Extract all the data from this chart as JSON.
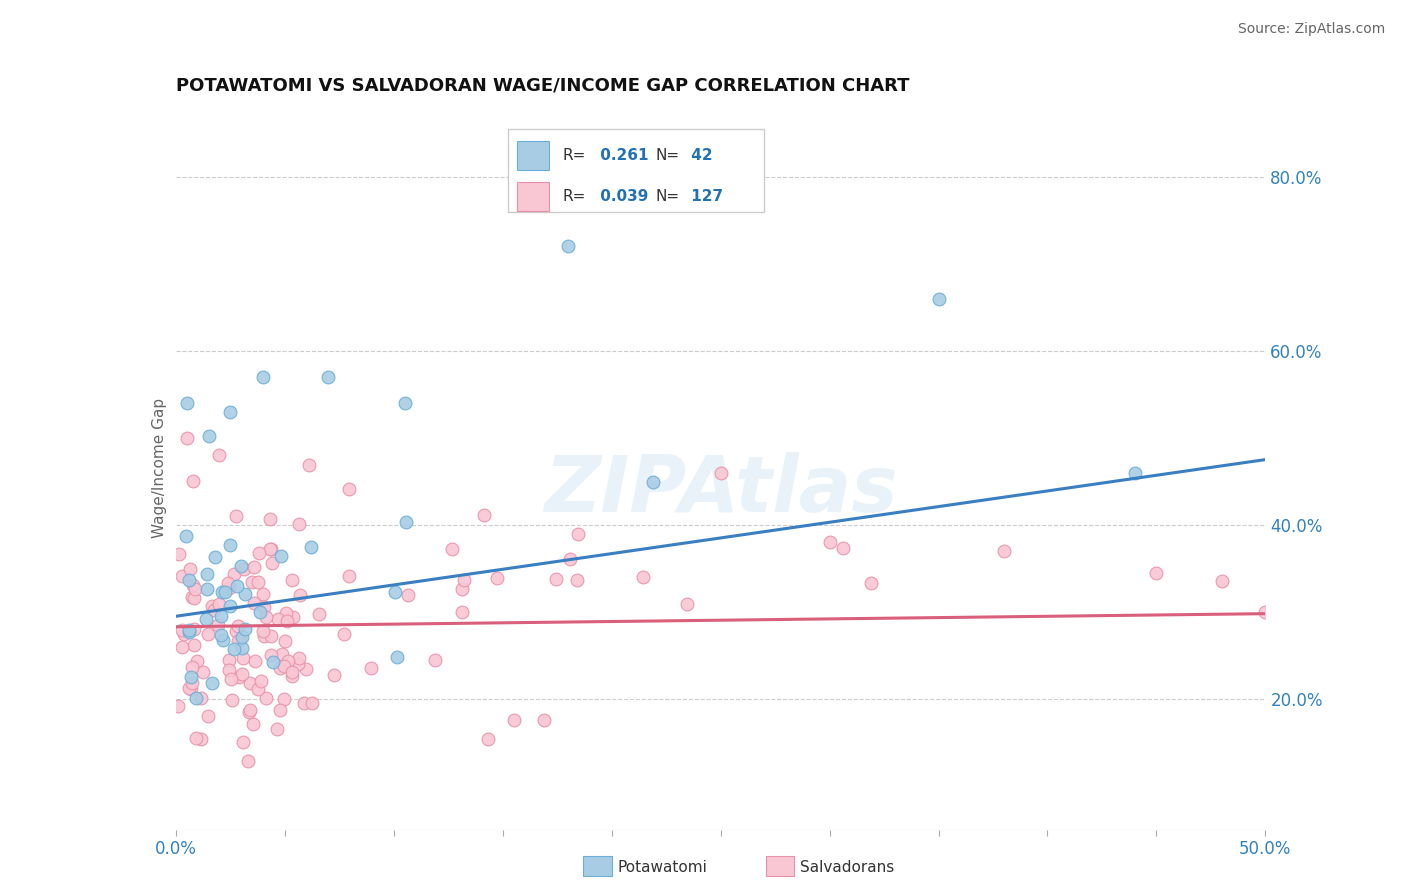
{
  "title": "POTAWATOMI VS SALVADORAN WAGE/INCOME GAP CORRELATION CHART",
  "source": "Source: ZipAtlas.com",
  "ylabel": "Wage/Income Gap",
  "yaxis_ticks": [
    "20.0%",
    "40.0%",
    "60.0%",
    "80.0%"
  ],
  "yaxis_tick_vals": [
    0.2,
    0.4,
    0.6,
    0.8
  ],
  "xlim": [
    0.0,
    0.5
  ],
  "ylim": [
    0.05,
    0.88
  ],
  "R_potawatomi": 0.261,
  "N_potawatomi": 42,
  "R_salvadoran": 0.039,
  "N_salvadoran": 127,
  "color_potawatomi_fill": "#a8cce4",
  "color_potawatomi_edge": "#6baed6",
  "color_salvadoran_fill": "#f9c6d4",
  "color_salvadoran_edge": "#e891a8",
  "color_line_potawatomi": "#3a7fc1",
  "color_line_salvadoran": "#d95f7a",
  "legend_label_potawatomi": "Potawatomi",
  "legend_label_salvadoran": "Salvadorans",
  "watermark": "ZIPAtlas",
  "pot_line_x0": 0.0,
  "pot_line_y0": 0.295,
  "pot_line_x1": 0.5,
  "pot_line_y1": 0.475,
  "sal_line_x0": 0.0,
  "sal_line_y0": 0.283,
  "sal_line_x1": 0.5,
  "sal_line_y1": 0.298
}
